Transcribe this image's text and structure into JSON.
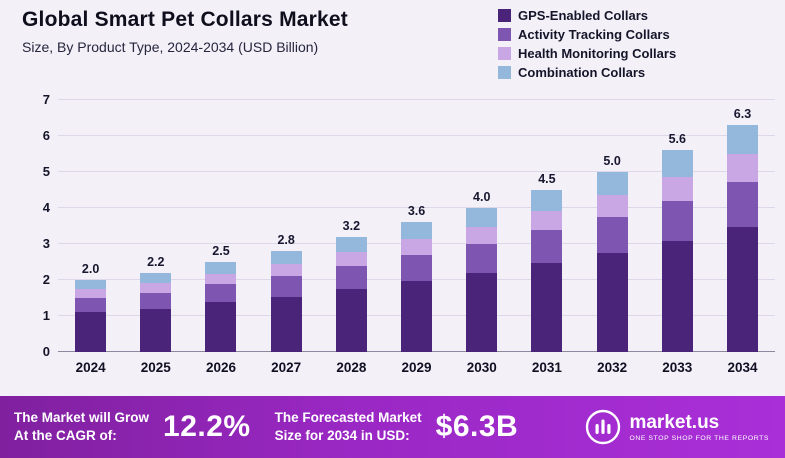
{
  "header": {
    "title": "Global Smart Pet Collars Market",
    "subtitle": "Size, By Product Type, 2024-2034 (USD Billion)"
  },
  "chart_data": {
    "type": "bar",
    "stacked": true,
    "title": "Global Smart Pet Collars Market Size, By Product Type, 2024-2034 (USD Billion)",
    "categories": [
      "2024",
      "2025",
      "2026",
      "2027",
      "2028",
      "2029",
      "2030",
      "2031",
      "2032",
      "2033",
      "2034"
    ],
    "totals": [
      2.0,
      2.2,
      2.5,
      2.8,
      3.2,
      3.6,
      4.0,
      4.5,
      5.0,
      5.6,
      6.3
    ],
    "series": [
      {
        "name": "GPS-Enabled Collars",
        "color": "#4a2478",
        "values": [
          1.1,
          1.2,
          1.38,
          1.54,
          1.76,
          1.98,
          2.2,
          2.48,
          2.75,
          3.08,
          3.47
        ]
      },
      {
        "name": "Activity Tracking Collars",
        "color": "#7f55b2",
        "values": [
          0.4,
          0.45,
          0.5,
          0.56,
          0.64,
          0.72,
          0.8,
          0.9,
          1.0,
          1.12,
          1.26
        ]
      },
      {
        "name": "Health Monitoring Collars",
        "color": "#c9a7e4",
        "values": [
          0.24,
          0.26,
          0.3,
          0.34,
          0.38,
          0.43,
          0.48,
          0.54,
          0.6,
          0.67,
          0.76
        ]
      },
      {
        "name": "Combination Collars",
        "color": "#93b8db",
        "values": [
          0.26,
          0.29,
          0.32,
          0.36,
          0.42,
          0.47,
          0.52,
          0.58,
          0.65,
          0.73,
          0.81
        ]
      }
    ],
    "xlabel": "",
    "ylabel": "",
    "ylim": [
      0,
      7
    ],
    "yticks": [
      0,
      1,
      2,
      3,
      4,
      5,
      6,
      7
    ],
    "grid": true,
    "legend_position": "top-right"
  },
  "banner": {
    "cagr_label_line1": "The Market will Grow",
    "cagr_label_line2": "At the CAGR of:",
    "cagr_value": "12.2%",
    "forecast_label_line1": "The Forecasted Market",
    "forecast_label_line2": "Size for 2034 in USD:",
    "forecast_value": "$6.3B",
    "logo_text": "market.us",
    "logo_tagline": "One Stop Shop For The Reports"
  }
}
